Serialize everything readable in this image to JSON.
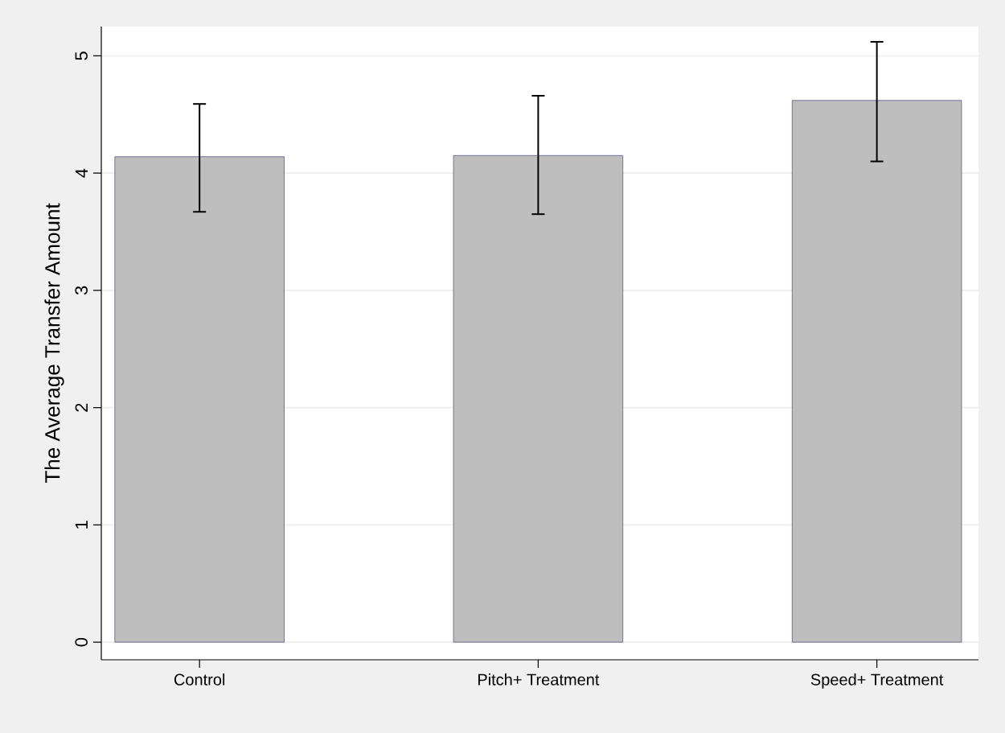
{
  "chart_data": {
    "type": "bar",
    "ylabel": "The Average Transfer Amount",
    "categories": [
      "Control",
      "Pitch+ Treatment",
      "Speed+ Treatment"
    ],
    "values": [
      4.14,
      4.15,
      4.62
    ],
    "errors": [
      [
        3.67,
        4.59
      ],
      [
        3.65,
        4.66
      ],
      [
        4.1,
        5.12
      ]
    ],
    "color": "#bebebe",
    "ylim": [
      -0.15,
      5.25
    ],
    "yticks": [
      0,
      1,
      2,
      3,
      4,
      5
    ],
    "grid": "y"
  }
}
